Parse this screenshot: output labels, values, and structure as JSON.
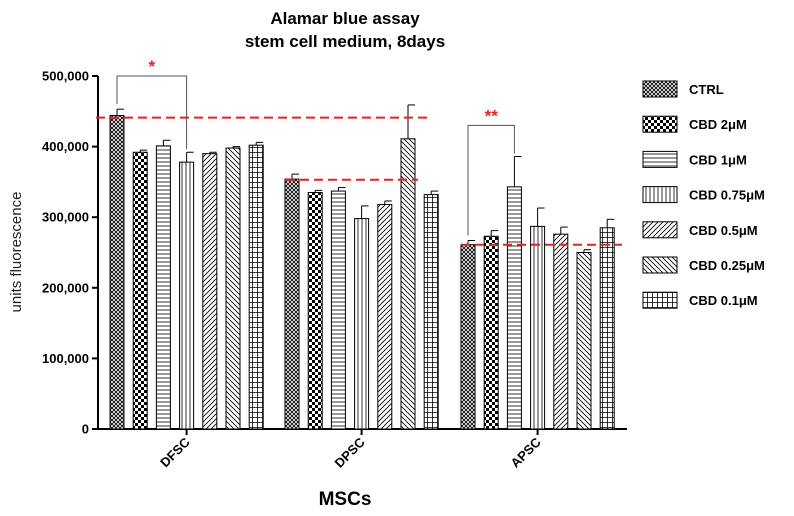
{
  "chart_data": {
    "type": "bar",
    "title": [
      "Alamar blue assay",
      "stem cell medium, 8days"
    ],
    "xlabel": "MSCs",
    "ylabel": "units fluorescence",
    "ylim": [
      0,
      500000
    ],
    "yticks": [
      0,
      100000,
      200000,
      300000,
      400000,
      500000
    ],
    "ytick_labels": [
      "0",
      "100,000",
      "200,000",
      "300,000",
      "400,000",
      "500,000"
    ],
    "categories": [
      "DFSC",
      "DPSC",
      "APSC"
    ],
    "series": [
      {
        "name": "CTRL",
        "pattern": "crosshatch-fine",
        "values": [
          444000,
          354000,
          261000
        ],
        "errors": [
          9000,
          7000,
          6000
        ]
      },
      {
        "name": "CBD 2μM",
        "pattern": "checker",
        "values": [
          392000,
          335000,
          273000
        ],
        "errors": [
          3000,
          3000,
          8000
        ]
      },
      {
        "name": "CBD 1μM",
        "pattern": "horizontal",
        "values": [
          401000,
          337000,
          343000
        ],
        "errors": [
          8000,
          5000,
          43000
        ]
      },
      {
        "name": "CBD 0.75μM",
        "pattern": "vertical",
        "values": [
          378000,
          298000,
          287000
        ],
        "errors": [
          14000,
          18000,
          26000
        ]
      },
      {
        "name": "CBD 0.5μM",
        "pattern": "diagonal-right",
        "values": [
          390000,
          318000,
          276000
        ],
        "errors": [
          2000,
          5000,
          10000
        ]
      },
      {
        "name": "CBD 0.25μM",
        "pattern": "diagonal-left",
        "values": [
          398000,
          411000,
          250000
        ],
        "errors": [
          2000,
          48000,
          4000
        ]
      },
      {
        "name": "CBD 0.1μM",
        "pattern": "grid",
        "values": [
          402000,
          332000,
          285000
        ],
        "errors": [
          4000,
          5000,
          12000
        ]
      }
    ],
    "reference_lines": [
      {
        "category": "DFSC",
        "value": 441000,
        "color": "#e8201e"
      },
      {
        "category": "DPSC",
        "value": 353000,
        "color": "#e8201e"
      },
      {
        "category": "APSC",
        "value": 261000,
        "color": "#e8201e"
      }
    ],
    "significance": [
      {
        "category": "DFSC",
        "from_series": 0,
        "to_series": 3,
        "label": "*",
        "level": 500000,
        "color": "#e8201e"
      },
      {
        "category": "APSC",
        "from_series": 0,
        "to_series": 2,
        "label": "**",
        "level": 430000,
        "color": "#e8201e"
      }
    ],
    "legend_position": "right"
  }
}
